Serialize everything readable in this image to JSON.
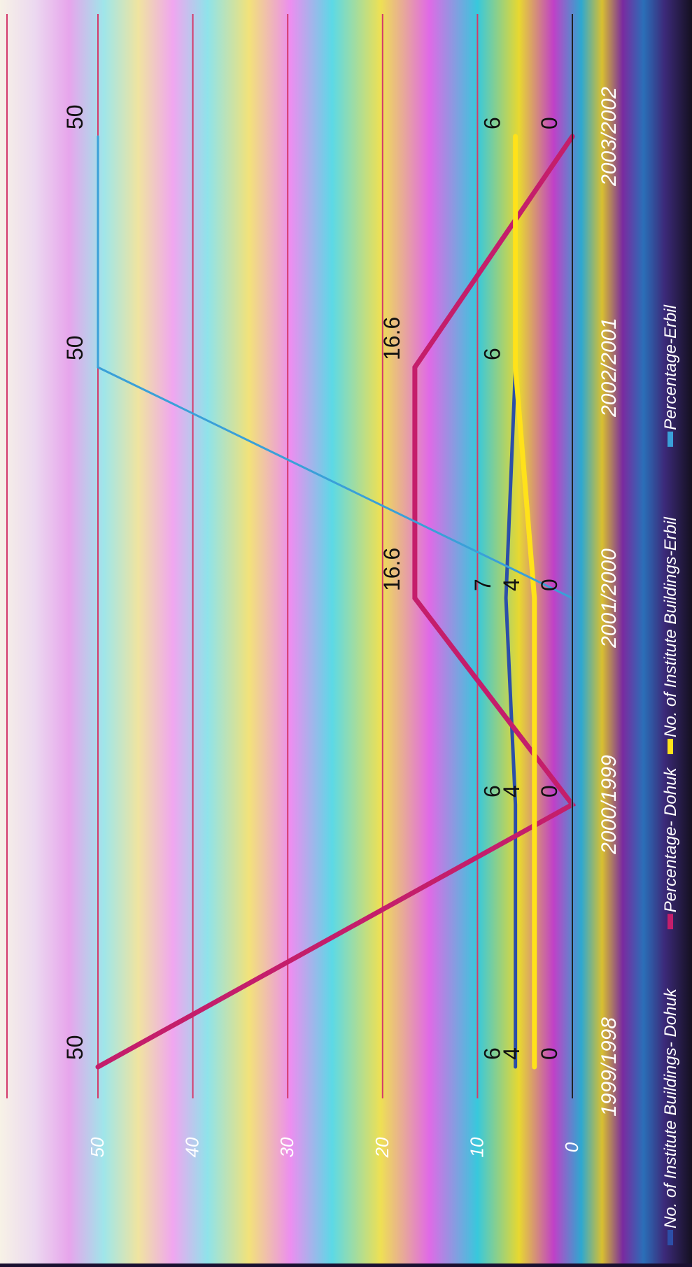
{
  "chart_data": {
    "type": "line",
    "orientation": "rotated-90-clockwise",
    "categories": [
      "1999/1998",
      "2000/1999",
      "2001/2000",
      "2002/2001",
      "2003/2002"
    ],
    "y_ticks": [
      "0",
      "10",
      "20",
      "30",
      "40",
      "50"
    ],
    "ylim": [
      0,
      50
    ],
    "grid": true,
    "legend_position": "bottom",
    "series": [
      {
        "name": "No. of Institute Buildings- Dohuk",
        "values": [
          6,
          6,
          7,
          6,
          null
        ],
        "labels": [
          "6",
          "6",
          "7",
          "",
          ""
        ],
        "color": "#2c4fa8"
      },
      {
        "name": "Percentage- Dohuk",
        "values": [
          50,
          0,
          16.6,
          16.6,
          0
        ],
        "labels": [
          "50",
          "0",
          "16.6",
          "16.6",
          "0"
        ],
        "color": "#c41e6b"
      },
      {
        "name": "No. of Institute Buildings-Erbil",
        "values": [
          4,
          4,
          4,
          6,
          6
        ],
        "labels": [
          "4",
          "4",
          "4",
          "6",
          "6"
        ],
        "color": "#ffe21a"
      },
      {
        "name": "Percentage-Erbil",
        "values": [
          0,
          0,
          0,
          50,
          50
        ],
        "labels": [
          "0",
          "",
          "0",
          "50",
          "50"
        ],
        "color": "#3aa0d8"
      }
    ]
  }
}
